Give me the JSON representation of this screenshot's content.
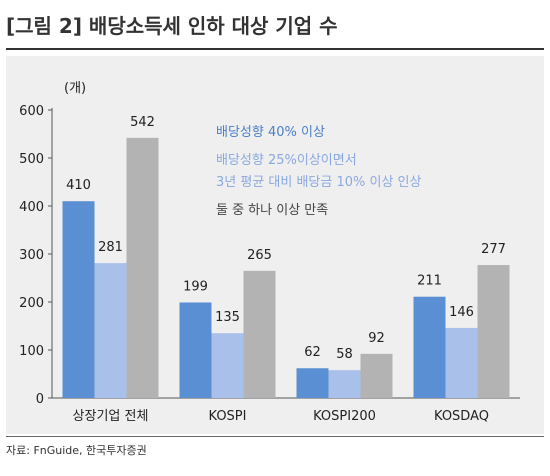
{
  "title": "[그림 2] 배당소득세 인하 대상 기업 수",
  "source": "자료: FnGuide, 한국투자증권",
  "chart_data": {
    "type": "bar",
    "unit": "(개)",
    "categories": [
      "상장기업 전체",
      "KOSPI",
      "KOSPI200",
      "KOSDAQ"
    ],
    "series": [
      {
        "name": "배당성향 40% 이상",
        "color": "#5b8fd3",
        "values": [
          410,
          199,
          62,
          211
        ]
      },
      {
        "name": "배당성향 25%이상이면서\n3년 평균 대비 배당금 10% 이상 인상",
        "color": "#a9c0ea",
        "values": [
          281,
          135,
          58,
          146
        ]
      },
      {
        "name": "둘 중 하나 이상 만족",
        "color": "#b3b3b3",
        "values": [
          542,
          265,
          92,
          277
        ]
      }
    ],
    "ylim": [
      0,
      600
    ],
    "yticks": [
      0,
      100,
      200,
      300,
      400,
      500,
      600
    ],
    "legend_position": "top-right"
  }
}
